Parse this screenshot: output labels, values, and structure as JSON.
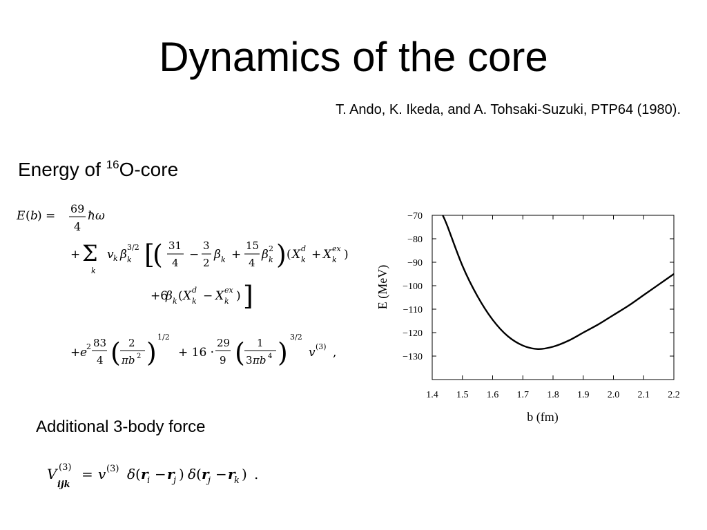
{
  "slide": {
    "title": "Dynamics of the core",
    "reference": "T. Ando, K. Ikeda, and A. Tohsaki-Suzuki, PTP64 (1980).",
    "section_prefix": "Energy of ",
    "section_sup": "16",
    "section_suffix": "O-core",
    "subsection": "Additional 3-body force"
  },
  "chart_data": {
    "type": "line",
    "xlabel": "b (fm)",
    "ylabel": "E (MeV)",
    "xlim": [
      1.4,
      2.2
    ],
    "ylim": [
      -140,
      -70
    ],
    "xticks": [
      1.4,
      1.5,
      1.6,
      1.7,
      1.8,
      1.9,
      2.0,
      2.1,
      2.2
    ],
    "xtick_labels": [
      "1.4",
      "1.5",
      "1.6",
      "1.7",
      "1.8",
      "1.9",
      "2.0",
      "2.1",
      "2.2"
    ],
    "yticks": [
      -70,
      -80,
      -90,
      -100,
      -110,
      -120,
      -130
    ],
    "ytick_labels": [
      "−70",
      "−80",
      "−90",
      "−100",
      "−110",
      "−120",
      "−130"
    ],
    "grid": false,
    "series": [
      {
        "x": [
          1.435,
          1.45,
          1.5,
          1.55,
          1.6,
          1.65,
          1.7,
          1.75,
          1.8,
          1.85,
          1.9,
          1.95,
          2.0,
          2.05,
          2.1,
          2.15,
          2.2
        ],
        "y": [
          -70,
          -74.5,
          -91.5,
          -104.5,
          -114.5,
          -121.5,
          -125.5,
          -127,
          -126,
          -123.5,
          -120,
          -116.5,
          -112.5,
          -108.5,
          -104,
          -99.5,
          -95
        ]
      }
    ]
  }
}
